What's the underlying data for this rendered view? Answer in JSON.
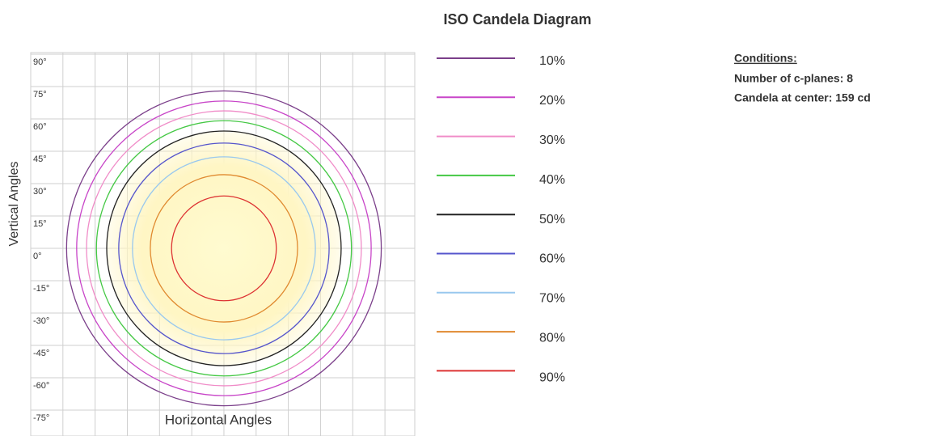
{
  "chart_data": {
    "type": "iso",
    "title": "ISO Candela Diagram",
    "xlabel": "Horizontal Angles",
    "ylabel": "Vertical Angles",
    "conditions": {
      "heading": "Conditions:",
      "lines": [
        "Number of c-planes: 8",
        "Candela at center: 159 cd"
      ]
    },
    "center": [
      0,
      0
    ],
    "series": [
      {
        "name": "10%",
        "color": "#7b3f8a",
        "values": [
          73.3
        ]
      },
      {
        "name": "20%",
        "color": "#c845c8",
        "values": [
          68.6
        ]
      },
      {
        "name": "30%",
        "color": "#f08cc8",
        "values": [
          64
        ]
      },
      {
        "name": "40%",
        "color": "#44c844",
        "values": [
          59.4
        ]
      },
      {
        "name": "50%",
        "color": "#222222",
        "values": [
          54.6
        ]
      },
      {
        "name": "60%",
        "color": "#5555cc",
        "values": [
          49
        ]
      },
      {
        "name": "70%",
        "color": "#99c8ee",
        "values": [
          42.6
        ]
      },
      {
        "name": "80%",
        "color": "#e08a30",
        "values": [
          34.3
        ]
      },
      {
        "name": "90%",
        "color": "#dd3333",
        "values": [
          24.4
        ]
      }
    ],
    "xlim": [
      -90,
      88.9
    ],
    "ylim": [
      -87,
      90.75
    ],
    "xticks": [
      -75,
      -60,
      -45,
      -30,
      -15,
      0,
      15,
      30,
      45,
      60,
      75
    ],
    "x_tick_labels": false,
    "yticks": [
      {
        "value": 90,
        "label": "90°"
      },
      {
        "value": 75,
        "label": "75°"
      },
      {
        "value": 60,
        "label": "60°"
      },
      {
        "value": 45,
        "label": "45°"
      },
      {
        "value": 30,
        "label": "30°"
      },
      {
        "value": 15,
        "label": "15°"
      },
      {
        "value": 0,
        "label": "0°"
      },
      {
        "value": -15,
        "label": "-15°"
      },
      {
        "value": -30,
        "label": "-30°"
      },
      {
        "value": -45,
        "label": "-45°"
      },
      {
        "value": -60,
        "label": "-60°"
      },
      {
        "value": -75,
        "label": "-75°"
      }
    ],
    "grid": true
  }
}
